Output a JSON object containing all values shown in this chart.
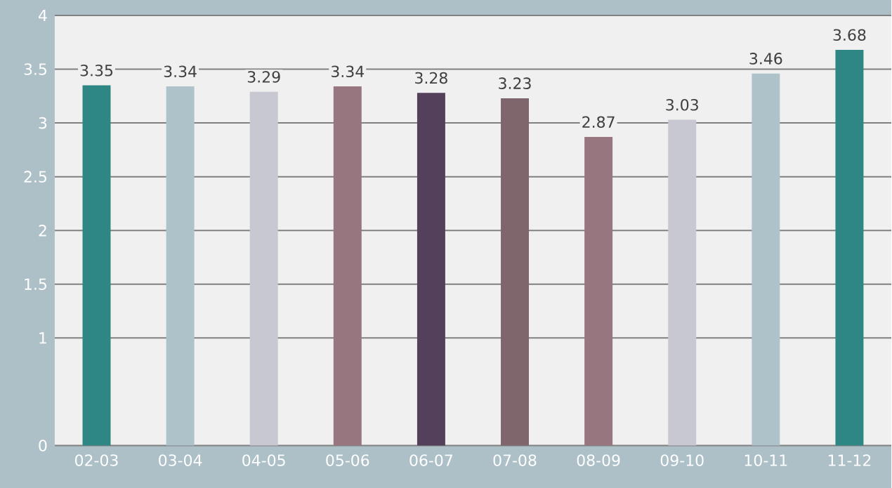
{
  "chart_data": {
    "type": "bar",
    "categories": [
      "02-03",
      "03-04",
      "04-05",
      "05-06",
      "06-07",
      "07-08",
      "08-09",
      "09-10",
      "10-11",
      "11-12"
    ],
    "values": [
      3.35,
      3.34,
      3.29,
      3.34,
      3.28,
      3.23,
      2.87,
      3.03,
      3.46,
      3.68
    ],
    "colors": [
      "#2e8785",
      "#aec2ca",
      "#c8c8d2",
      "#98767f",
      "#54405a",
      "#7e666c",
      "#98767f",
      "#c8c8d2",
      "#aec2ca",
      "#2e8785"
    ],
    "ylim": [
      0,
      4
    ],
    "yticks": [
      0,
      1,
      1.5,
      2,
      2.5,
      3,
      3.5,
      4
    ],
    "grid": "y",
    "data_labels": true
  }
}
